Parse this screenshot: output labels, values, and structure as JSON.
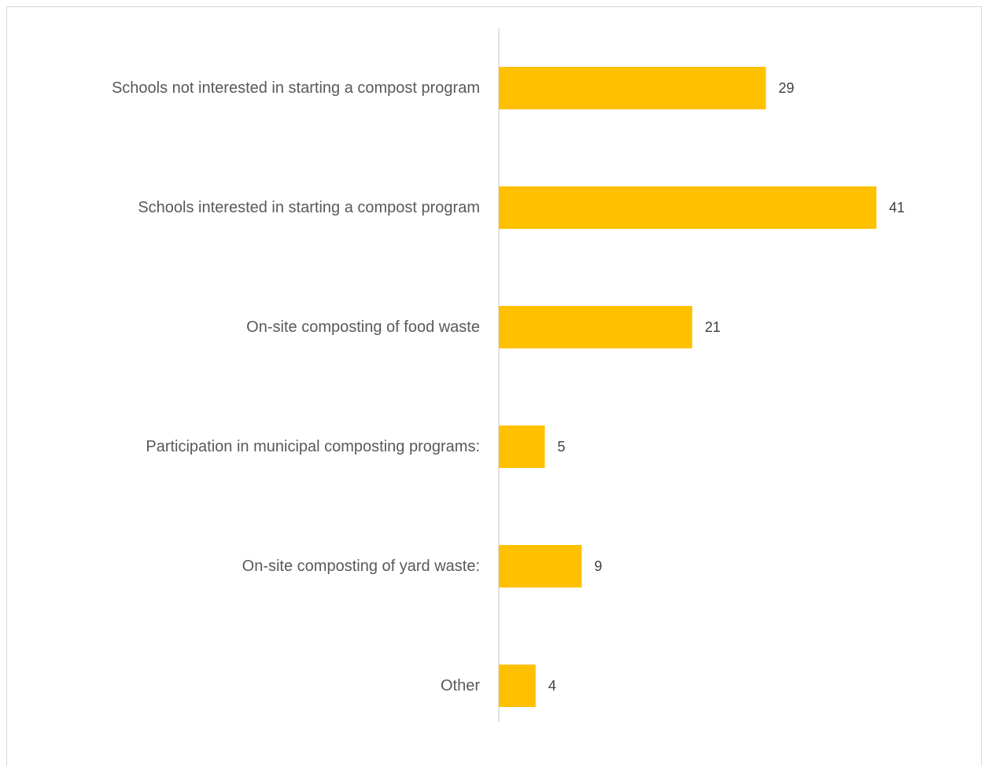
{
  "chart_data": {
    "type": "bar",
    "orientation": "horizontal",
    "categories": [
      "Schools not interested in starting a compost program",
      "Schools interested in starting a compost program",
      "On-site composting of food waste",
      "Participation in municipal composting programs:",
      "On-site composting of yard waste:",
      "Other"
    ],
    "values": [
      29,
      41,
      21,
      5,
      9,
      4
    ],
    "xlim": [
      0,
      41
    ],
    "grid": false,
    "legend": "none",
    "data_labels": true,
    "bar_color": "#FFC000",
    "axis_color": "#d9d9d9",
    "label_color": "#595959",
    "value_color": "#404040"
  }
}
